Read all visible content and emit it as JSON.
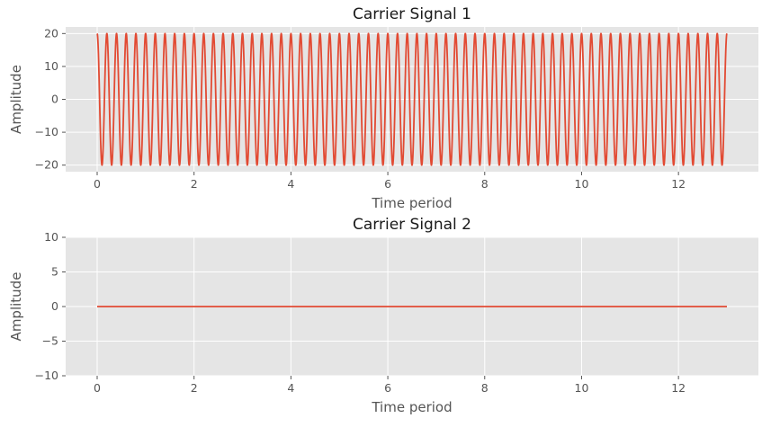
{
  "chart_data": [
    {
      "type": "line",
      "title": "Carrier Signal 1",
      "xlabel": "Time period",
      "ylabel": "Amplitude",
      "xlim": [
        -0.65,
        13.65
      ],
      "ylim": [
        -22,
        22
      ],
      "xticks": [
        0,
        2,
        4,
        6,
        8,
        10,
        12
      ],
      "yticks": [
        -20,
        -10,
        0,
        10,
        20
      ],
      "grid": true,
      "series": [
        {
          "color": "#E24A33",
          "function": "amplitude * cos(2 * pi * frequency * t)",
          "amplitude": 20,
          "frequency": 5,
          "t_range": [
            0,
            13
          ]
        }
      ]
    },
    {
      "type": "line",
      "title": "Carrier Signal 2",
      "xlabel": "Time period",
      "ylabel": "Amplitude",
      "xlim": [
        -0.65,
        13.65
      ],
      "ylim": [
        -10,
        10
      ],
      "xticks": [
        0,
        2,
        4,
        6,
        8,
        10,
        12
      ],
      "yticks": [
        -10,
        -5,
        0,
        5,
        10
      ],
      "grid": true,
      "series": [
        {
          "color": "#E24A33",
          "function": "constant",
          "value": 0,
          "t_range": [
            0,
            13
          ]
        }
      ]
    }
  ]
}
